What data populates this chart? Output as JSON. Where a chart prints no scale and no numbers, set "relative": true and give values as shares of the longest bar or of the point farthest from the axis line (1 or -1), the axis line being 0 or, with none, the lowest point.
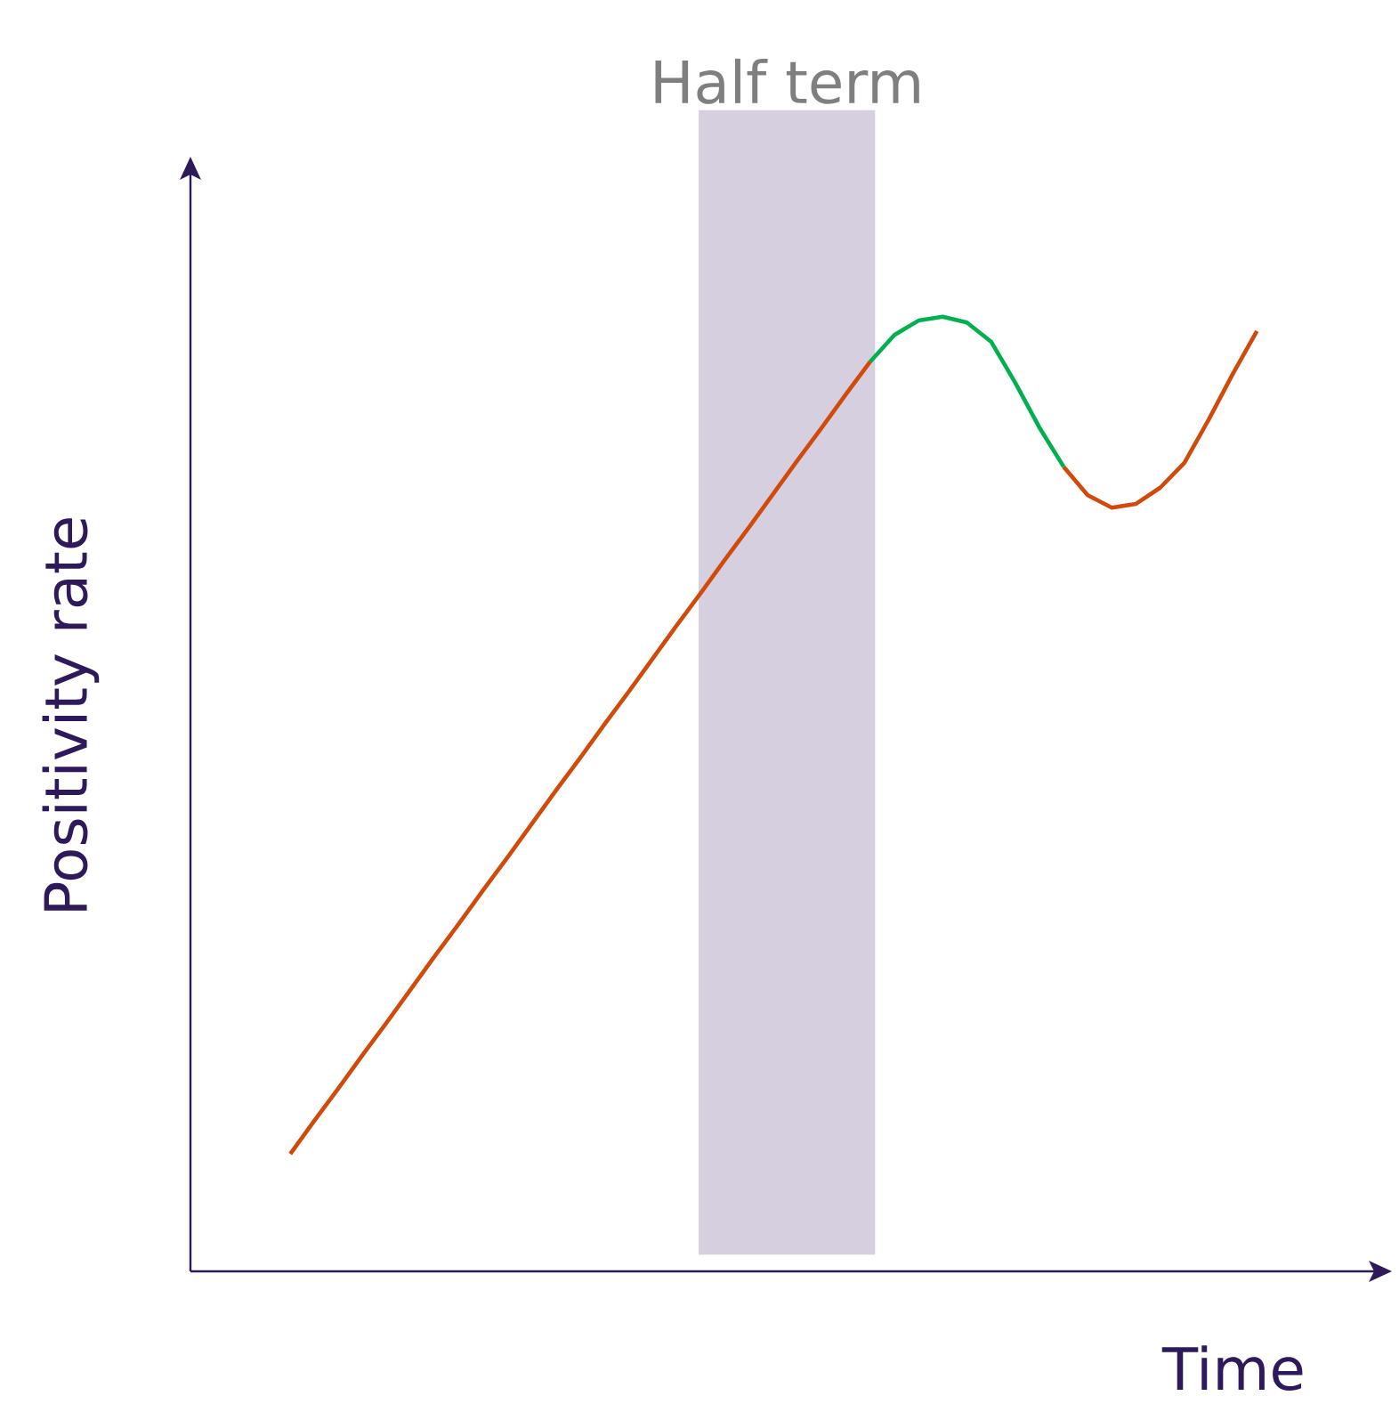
{
  "chart_data": {
    "type": "line",
    "relative": true,
    "xlabel": "Time",
    "ylabel": "Positivity rate",
    "categories": [
      null,
      null,
      null,
      null,
      null,
      null,
      null,
      null,
      null,
      null,
      null,
      null,
      null,
      null,
      null,
      null,
      null,
      null,
      null,
      null,
      null,
      null,
      null,
      null,
      null,
      null,
      null,
      null,
      null,
      null,
      null,
      null,
      null,
      null,
      null,
      null,
      null,
      null,
      null,
      null,
      null
    ],
    "series": [
      {
        "color": "#d04a0a",
        "values": [
          0.123,
          0.158,
          0.192,
          0.227,
          0.261,
          0.296,
          0.331,
          0.365,
          0.4,
          0.434,
          0.469,
          0.504,
          0.538,
          0.573,
          0.607,
          0.642,
          0.677,
          0.711,
          0.746,
          0.78,
          0.815,
          0.85,
          0.884,
          0.919,
          0.953,
          null,
          null,
          null,
          null,
          null,
          null,
          null,
          0.843,
          0.813,
          0.8,
          0.804,
          0.821,
          0.847,
          0.892,
          0.94,
          0.985
        ]
      },
      {
        "color": "#00b050",
        "values": [
          null,
          null,
          null,
          null,
          null,
          null,
          null,
          null,
          null,
          null,
          null,
          null,
          null,
          null,
          null,
          null,
          null,
          null,
          null,
          null,
          null,
          null,
          null,
          null,
          0.953,
          0.981,
          0.996,
          1.0,
          0.994,
          0.974,
          0.931,
          0.884,
          0.843,
          null,
          null,
          null,
          null,
          null,
          null,
          null,
          null
        ]
      }
    ],
    "annotations": [
      "Half term"
    ]
  }
}
